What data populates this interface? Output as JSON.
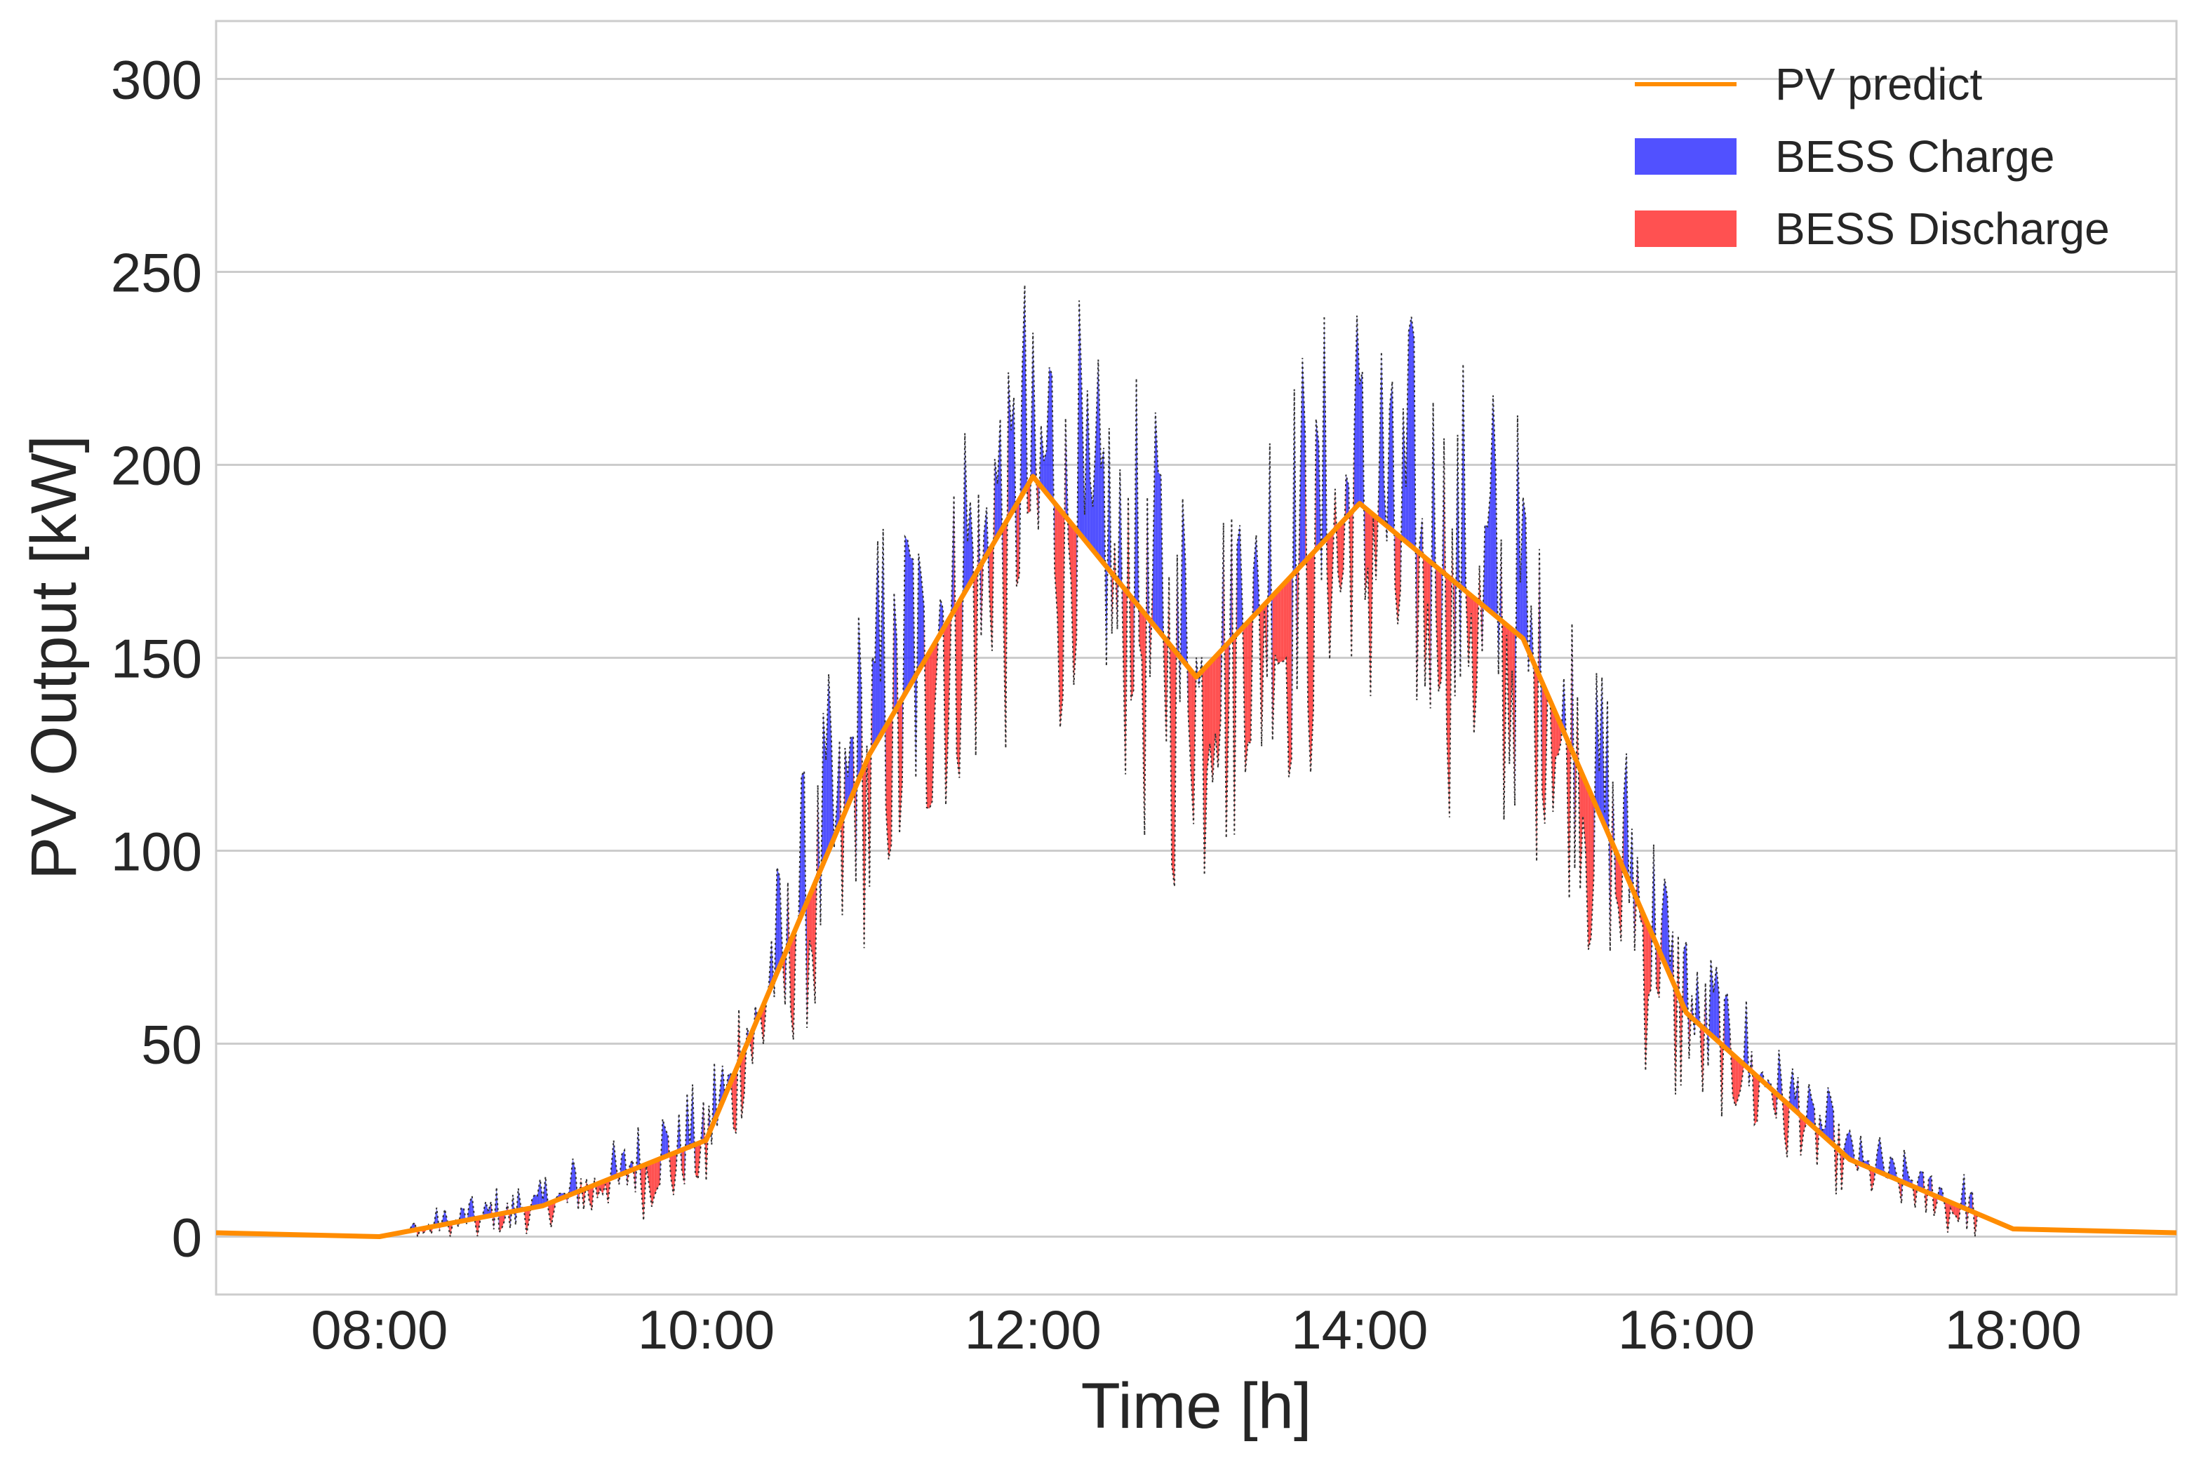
{
  "chart_data": {
    "type": "line",
    "xlabel": "Time [h]",
    "ylabel": "PV Output [kW]",
    "xlim": [
      7.0,
      19.0
    ],
    "ylim": [
      -15,
      315
    ],
    "grid": "horizontal",
    "x_ticks": [
      "08:00",
      "10:00",
      "12:00",
      "14:00",
      "16:00",
      "18:00"
    ],
    "x_tick_values": [
      8,
      10,
      12,
      14,
      16,
      18
    ],
    "y_ticks": [
      "0",
      "50",
      "100",
      "150",
      "200",
      "250",
      "300"
    ],
    "y_tick_values": [
      0,
      50,
      100,
      150,
      200,
      250,
      300
    ],
    "legend_position": "top-right",
    "legend": [
      {
        "label": "PV predict",
        "color": "#ff8c00",
        "kind": "line"
      },
      {
        "label": "BESS Charge",
        "color": "#3333ff",
        "kind": "patch"
      },
      {
        "label": "BESS Discharge",
        "color": "#ff3333",
        "kind": "patch"
      }
    ],
    "series": [
      {
        "name": "PV predict",
        "color": "#ff8c00",
        "x": [
          7,
          8,
          9,
          10,
          11,
          12,
          13,
          14,
          15,
          16,
          17,
          18,
          19
        ],
        "values": [
          1,
          0,
          8,
          25,
          125,
          197,
          145,
          190,
          155,
          58,
          20,
          2,
          1
        ]
      }
    ],
    "actual_output_note_color": "#333333",
    "charge_color": "#3333ff",
    "discharge_color": "#ff3333"
  }
}
